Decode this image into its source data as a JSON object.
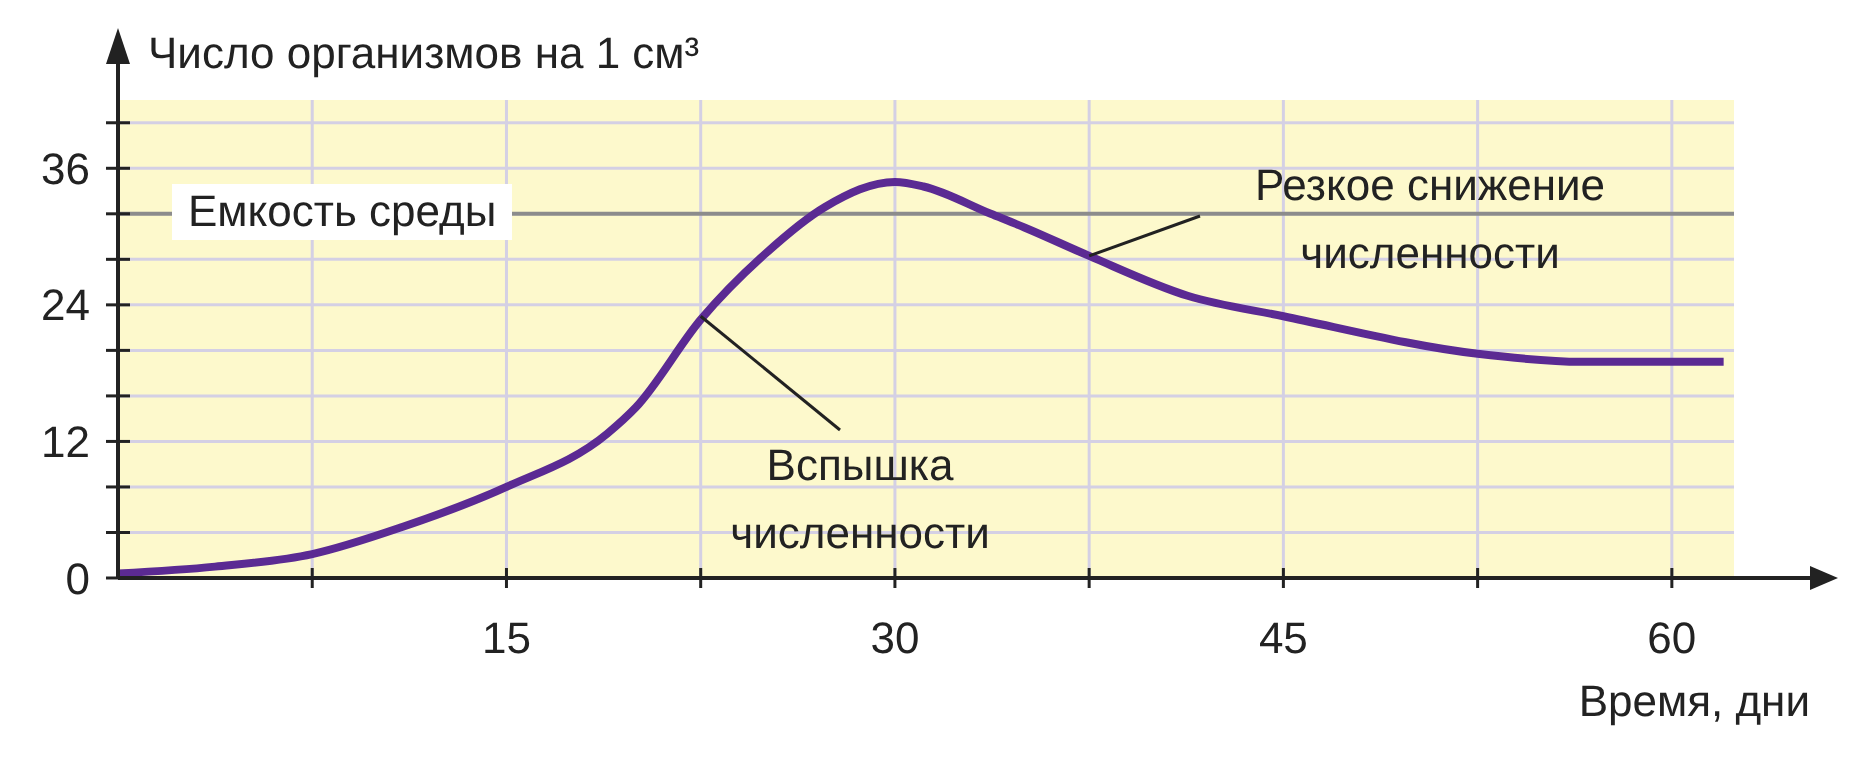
{
  "chart_data": {
    "type": "line",
    "ylabel": "Число организмов на 1 см³",
    "xlabel": "Время, дни",
    "x": [
      0,
      3.75,
      7.5,
      11,
      15,
      18.9,
      20,
      22.5,
      25,
      27.3,
      30,
      31.1,
      33.7,
      35,
      37.5,
      41.3,
      45,
      52.5,
      56.5,
      62
    ],
    "series": [
      {
        "color": "#5b2a93",
        "values": [
          0.4,
          1,
          2.1,
          4.5,
          8,
          12.7,
          15,
          22.7,
          28.5,
          32.6,
          34.8,
          34.4,
          32,
          30.8,
          28.3,
          24.8,
          23,
          19.7,
          19,
          19
        ]
      }
    ],
    "xlim": [
      0,
      62.4
    ],
    "ylim": [
      0,
      42
    ],
    "xticks": [
      {
        "value": 7.5,
        "label": null
      },
      15,
      {
        "value": 22.5,
        "label": null
      },
      30,
      {
        "value": 37.5,
        "label": null
      },
      45,
      {
        "value": 52.5,
        "label": null
      },
      60
    ],
    "yticks": [
      0,
      {
        "value": 4,
        "label": null
      },
      {
        "value": 8,
        "label": null
      },
      12,
      {
        "value": 16,
        "label": null
      },
      {
        "value": 20,
        "label": null
      },
      24,
      {
        "value": 28,
        "label": null
      },
      {
        "value": 32,
        "label": null
      },
      36,
      {
        "value": 40,
        "label": null
      }
    ],
    "grid": true,
    "ref_lines": [
      {
        "axis": "y",
        "value": 32,
        "label": "Емкость среды",
        "color": "#8c8c8c"
      }
    ],
    "annotations": [
      {
        "text": "Вспышка численности",
        "x": 22.5,
        "y": 23
      },
      {
        "text": "Резкое снижение численности",
        "x": 37.5,
        "y": 28.3
      }
    ]
  }
}
